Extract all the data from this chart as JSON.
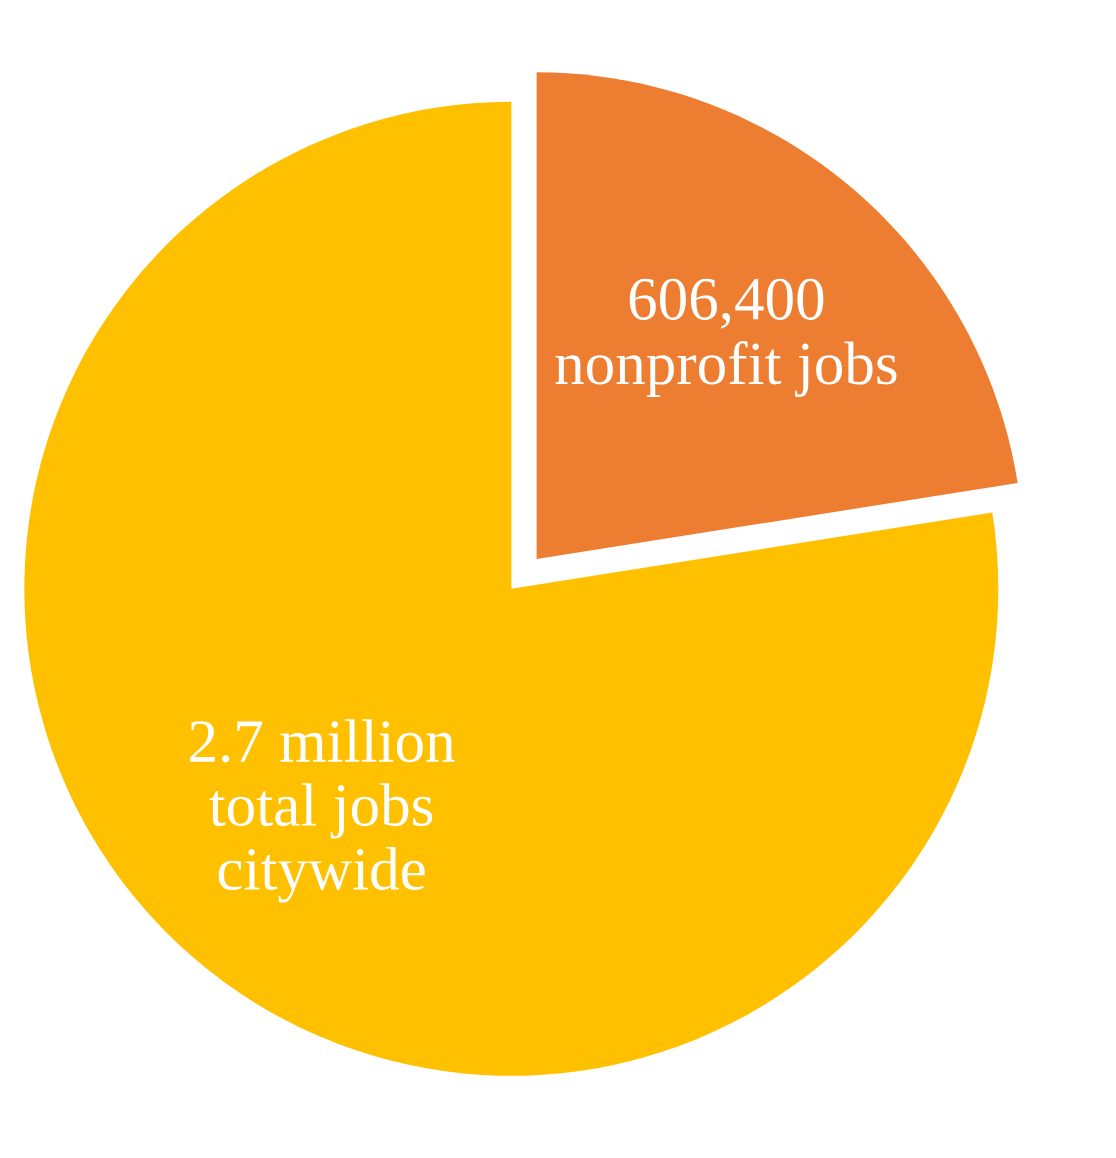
{
  "chart_data": {
    "type": "pie",
    "categories": [
      "606,400\nnonprofit jobs",
      "2.7 million\ntotal jobs\ncitywide"
    ],
    "values": [
      22.5,
      77.5
    ],
    "colors": [
      "#ed7d31",
      "#ffc000"
    ],
    "legend": false
  }
}
